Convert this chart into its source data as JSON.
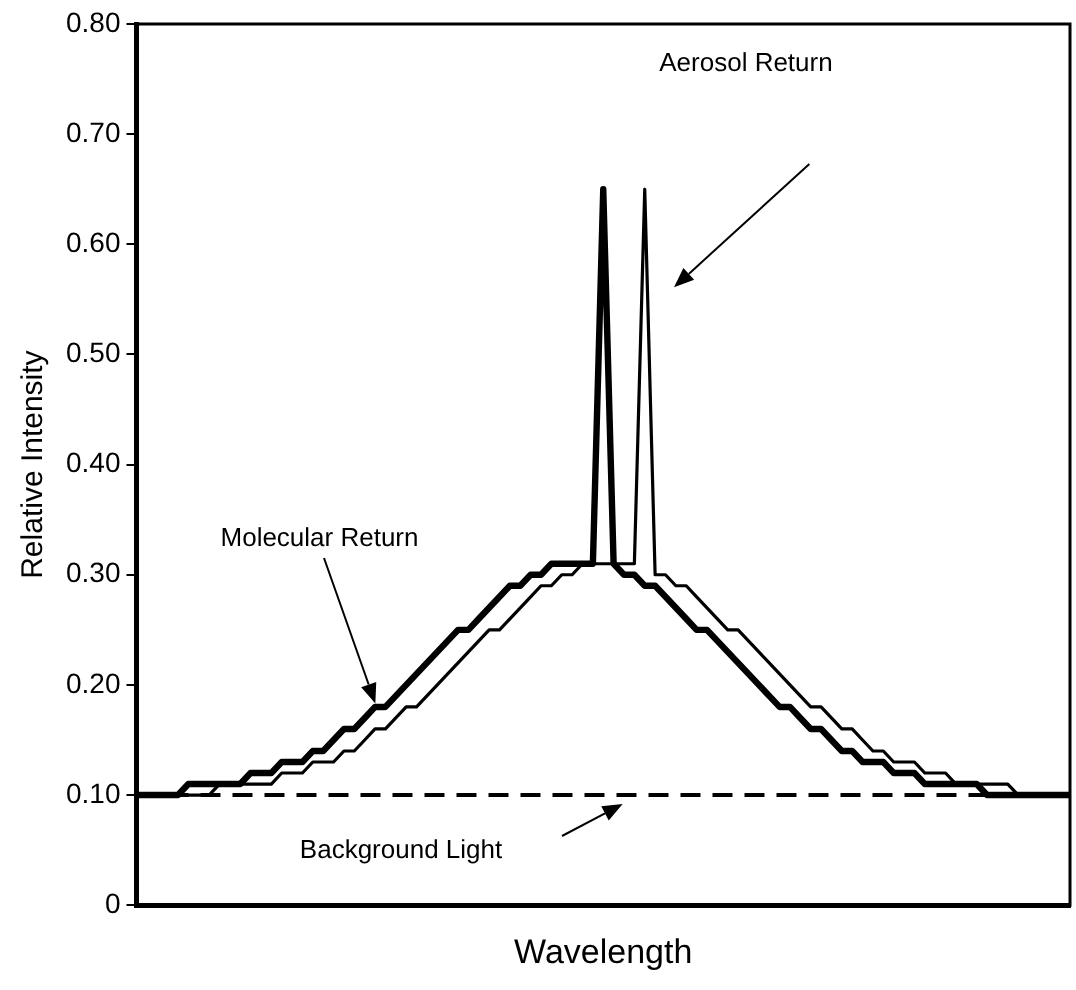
{
  "chart_data": {
    "type": "line",
    "xlabel": "Wavelength",
    "ylabel": "Relative Intensity",
    "categories": [
      null,
      null,
      null,
      null,
      null,
      null,
      null,
      null,
      null,
      null,
      null,
      null,
      null,
      null,
      null,
      null,
      null,
      null,
      null,
      null,
      null,
      null,
      null,
      null,
      null,
      null,
      null,
      null,
      null,
      null,
      null,
      null,
      null,
      null,
      null,
      null,
      null,
      null,
      null,
      null,
      null,
      null,
      null,
      null,
      null,
      null,
      null,
      null,
      null,
      null,
      null,
      null,
      null,
      null,
      null,
      null,
      null,
      null,
      null,
      null,
      null,
      null,
      null,
      null,
      null,
      null,
      null,
      null,
      null,
      null,
      null,
      null,
      null,
      null,
      null,
      null,
      null,
      null,
      null,
      null,
      null,
      null,
      null,
      null,
      null,
      null,
      null,
      null,
      null,
      null,
      null
    ],
    "series": [
      {
        "color": "#000000",
        "values": [
          0.1,
          0.1,
          0.1,
          0.1,
          0.1,
          0.11,
          0.11,
          0.11,
          0.11,
          0.11,
          0.11,
          0.12,
          0.12,
          0.12,
          0.13,
          0.13,
          0.13,
          0.14,
          0.14,
          0.15,
          0.16,
          0.16,
          0.17,
          0.18,
          0.18,
          0.19,
          0.2,
          0.21,
          0.22,
          0.23,
          0.24,
          0.25,
          0.25,
          0.26,
          0.27,
          0.28,
          0.29,
          0.29,
          0.3,
          0.3,
          0.31,
          0.31,
          0.31,
          0.31,
          0.31,
          0.65,
          0.31,
          0.3,
          0.3,
          0.29,
          0.29,
          0.28,
          0.27,
          0.26,
          0.25,
          0.25,
          0.24,
          0.23,
          0.22,
          0.21,
          0.2,
          0.19,
          0.18,
          0.18,
          0.17,
          0.16,
          0.16,
          0.15,
          0.14,
          0.14,
          0.13,
          0.13,
          0.13,
          0.12,
          0.12,
          0.12,
          0.11,
          0.11,
          0.11,
          0.11,
          0.11,
          0.11,
          0.1,
          0.1,
          0.1,
          0.1,
          0.1,
          0.1,
          0.1,
          0.1,
          0.1
        ]
      },
      {
        "color": "#000000",
        "values": [
          0.1,
          0.1,
          0.1,
          0.1,
          0.1,
          0.1,
          0.1,
          0.1,
          0.11,
          0.11,
          0.11,
          0.11,
          0.11,
          0.11,
          0.12,
          0.12,
          0.12,
          0.13,
          0.13,
          0.13,
          0.14,
          0.14,
          0.15,
          0.16,
          0.16,
          0.17,
          0.18,
          0.18,
          0.19,
          0.2,
          0.21,
          0.22,
          0.23,
          0.24,
          0.25,
          0.25,
          0.26,
          0.27,
          0.28,
          0.29,
          0.29,
          0.3,
          0.3,
          0.31,
          0.31,
          0.31,
          0.31,
          0.31,
          0.31,
          0.65,
          0.3,
          0.3,
          0.29,
          0.29,
          0.28,
          0.27,
          0.26,
          0.25,
          0.25,
          0.24,
          0.23,
          0.22,
          0.21,
          0.2,
          0.19,
          0.18,
          0.18,
          0.17,
          0.16,
          0.16,
          0.15,
          0.14,
          0.14,
          0.13,
          0.13,
          0.13,
          0.12,
          0.12,
          0.12,
          0.11,
          0.11,
          0.11,
          0.11,
          0.11,
          0.11,
          0.1,
          0.1,
          0.1,
          0.1,
          0.1,
          0.1
        ]
      }
    ],
    "ylim": [
      0,
      0.8
    ],
    "yticks": [
      0,
      {
        "value": 0.1,
        "label": "0.10"
      },
      {
        "value": 0.2,
        "label": "0.20"
      },
      {
        "value": 0.3,
        "label": "0.30"
      },
      {
        "value": 0.4,
        "label": "0.40"
      },
      {
        "value": 0.5,
        "label": "0.50"
      },
      {
        "value": 0.6,
        "label": "0.60"
      },
      {
        "value": 0.7,
        "label": "0.70"
      },
      {
        "value": 0.8,
        "label": "0.80"
      }
    ],
    "tick_labels": "y",
    "marker": "none",
    "line_style": "solid",
    "ref_lines": [
      {
        "axis": "y",
        "value": 0.1,
        "label": "Background Light",
        "color": "#000000",
        "line_style": "dashed"
      }
    ],
    "annotations": [
      "Aerosol Return",
      "Molecular Return"
    ]
  }
}
